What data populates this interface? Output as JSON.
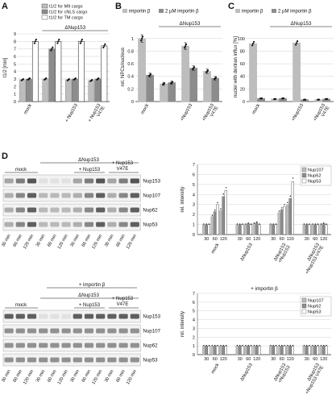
{
  "panels": {
    "A": {
      "letter": "A",
      "legend": [
        "t1/2 for M9 cargo",
        "t1/2 for cNLS cargo",
        "t1/2 for TM cargo"
      ],
      "legend_colors": [
        "#bdbdbd",
        "#8c8c8c",
        "#ffffff"
      ],
      "group_label": "ΔNup153",
      "ylabel": "t1/2 [min]",
      "yticks": [
        "0",
        "1",
        "2",
        "3",
        "4",
        "5",
        "6",
        "7",
        "8",
        "9"
      ],
      "xcats": [
        "mock",
        "",
        "+ Nup153",
        "+ Nup153 V47E"
      ]
    },
    "B": {
      "letter": "B",
      "legend": [
        "importin β",
        "2 µM importin β"
      ],
      "group_label": "ΔNup153",
      "ylabel": "rel. NPCs/nucleus",
      "yticks": [
        "0",
        "0.2",
        "0.4",
        "0.6",
        "0.8",
        "1"
      ],
      "xcats": [
        "mock",
        "",
        "+Nup153",
        "+Nup153 V47E"
      ]
    },
    "C": {
      "letter": "C",
      "legend": [
        "importin β",
        "2 µM importin β"
      ],
      "group_label": "ΔNup153",
      "ylabel": "nuclei with dextran influx [%]",
      "yticks": [
        "0",
        "20",
        "40",
        "60",
        "80",
        "100"
      ],
      "xcats": [
        "mock",
        "",
        "+Nup153",
        "+Nup153 V47E"
      ]
    },
    "D": {
      "letter": "D",
      "blot_top": {
        "header": "ΔNup153",
        "col_groups": [
          "mock",
          "+ Nup153",
          "+ Nup153 V47E"
        ],
        "rows": [
          "Nup153",
          "Nup107",
          "Nup62",
          "Nup53"
        ],
        "lanes": [
          "30 min",
          "60 min",
          "120 min",
          "30 min",
          "60 min",
          "120 min",
          "30 min",
          "60 min",
          "120 min",
          "30 min",
          "60 min",
          "120 min"
        ]
      },
      "blot_bottom": {
        "header_top": "+ importin β",
        "header": "ΔNup153",
        "col_groups": [
          "mock",
          "+ Nup153",
          "+ Nup153 V47E"
        ],
        "rows": [
          "Nup153",
          "Nup107",
          "Nup62",
          "Nup53"
        ],
        "lanes": [
          "30 min",
          "60 min",
          "120 min",
          "30 min",
          "60 min",
          "120 min",
          "30 min",
          "60 min",
          "120 min",
          "30 min",
          "60 min",
          "120 min"
        ]
      },
      "chart_top": {
        "ylabel": "rel. intensity",
        "legend": [
          "Nup107",
          "Nup62",
          "Nup53"
        ],
        "legend_colors": [
          "#bdbdbd",
          "#8c8c8c",
          "#ffffff"
        ],
        "yticks": [
          "0",
          "1",
          "2",
          "3",
          "4",
          "5",
          "6",
          "7"
        ],
        "time_ticks": [
          "30",
          "60",
          "120"
        ],
        "groups": [
          "mock",
          "ΔNup153",
          "ΔNup153 +Nup153",
          "ΔNup153 +Nup153 V47E"
        ]
      },
      "chart_bottom": {
        "title": "+ importin β",
        "ylabel": "rel. intensity",
        "legend": [
          "Nup107",
          "Nup62",
          "Nup53"
        ],
        "legend_colors": [
          "#bdbdbd",
          "#8c8c8c",
          "#ffffff"
        ],
        "yticks": [
          "0",
          "1",
          "2",
          "3",
          "4",
          "5",
          "6",
          "7"
        ],
        "time_ticks": [
          "30",
          "60",
          "120"
        ],
        "groups": [
          "mock",
          "ΔNup153",
          "ΔNup153 +Nup153",
          "ΔNup153 +Nup153 V47E"
        ]
      }
    }
  },
  "chart_data": [
    {
      "type": "bar",
      "panel": "A",
      "categories": [
        "mock",
        "ΔNup153",
        "ΔNup153 + Nup153",
        "ΔNup153 + Nup153 V47E"
      ],
      "series": [
        {
          "name": "t1/2 for M9 cargo",
          "values": [
            2.9,
            3.0,
            2.9,
            2.8
          ]
        },
        {
          "name": "t1/2 for cNLS cargo",
          "values": [
            3.0,
            7.0,
            3.0,
            3.0
          ]
        },
        {
          "name": "t1/2 for TM cargo",
          "values": [
            8.0,
            8.0,
            8.0,
            7.4
          ]
        }
      ],
      "ylabel": "t1/2 [min]",
      "ylim": [
        0,
        9
      ]
    },
    {
      "type": "bar",
      "panel": "B",
      "categories": [
        "mock",
        "ΔNup153",
        "ΔNup153 +Nup153",
        "ΔNup153 +Nup153 V47E"
      ],
      "series": [
        {
          "name": "importin β",
          "values": [
            1.0,
            0.28,
            0.88,
            0.48
          ]
        },
        {
          "name": "2 µM importin β",
          "values": [
            0.42,
            0.3,
            0.53,
            0.37
          ]
        }
      ],
      "ylabel": "rel. NPCs/nucleus",
      "ylim": [
        0,
        1.1
      ]
    },
    {
      "type": "bar",
      "panel": "C",
      "categories": [
        "mock",
        "ΔNup153",
        "ΔNup153 +Nup153",
        "ΔNup153 +Nup153 V47E"
      ],
      "series": [
        {
          "name": "importin β",
          "values": [
            92,
            4,
            93,
            3
          ]
        },
        {
          "name": "2 µM importin β",
          "values": [
            5,
            5,
            3,
            4
          ]
        }
      ],
      "ylabel": "nuclei with dextran influx [%]",
      "ylim": [
        0,
        110
      ]
    },
    {
      "type": "bar",
      "panel": "D-top",
      "categories": [
        "mock 30",
        "mock 60",
        "mock 120",
        "ΔNup153 30",
        "ΔNup153 60",
        "ΔNup153 120",
        "+Nup153 30",
        "+Nup153 60",
        "+Nup153 120",
        "+Nup153 V47E 30",
        "+Nup153 V47E 60",
        "+Nup153 V47E 120"
      ],
      "series": [
        {
          "name": "Nup107",
          "values": [
            1.0,
            1.8,
            2.4,
            1.0,
            1.0,
            1.1,
            1.0,
            2.2,
            3.0,
            1.0,
            1.0,
            1.0
          ]
        },
        {
          "name": "Nup62",
          "values": [
            1.0,
            2.3,
            3.8,
            1.0,
            1.1,
            1.2,
            1.0,
            2.5,
            3.6,
            1.0,
            1.0,
            1.1
          ]
        },
        {
          "name": "Nup53",
          "values": [
            1.0,
            3.0,
            4.4,
            1.0,
            1.0,
            1.0,
            1.0,
            2.8,
            5.3,
            1.0,
            1.0,
            1.0
          ]
        }
      ],
      "ylabel": "rel. intensity",
      "ylim": [
        0,
        7
      ]
    },
    {
      "type": "bar",
      "panel": "D-bottom",
      "title": "+ importin β",
      "categories": [
        "mock 30",
        "mock 60",
        "mock 120",
        "ΔNup153 30",
        "ΔNup153 60",
        "ΔNup153 120",
        "+Nup153 30",
        "+Nup153 60",
        "+Nup153 120",
        "+Nup153 V47E 30",
        "+Nup153 V47E 60",
        "+Nup153 V47E 120"
      ],
      "series": [
        {
          "name": "Nup107",
          "values": [
            1.0,
            1.0,
            1.0,
            1.0,
            1.0,
            1.0,
            1.0,
            1.0,
            1.0,
            1.0,
            1.0,
            1.0
          ]
        },
        {
          "name": "Nup62",
          "values": [
            1.0,
            1.0,
            1.0,
            1.0,
            1.0,
            1.0,
            1.0,
            1.0,
            1.0,
            1.0,
            1.0,
            1.0
          ]
        },
        {
          "name": "Nup53",
          "values": [
            1.0,
            1.0,
            1.0,
            1.0,
            1.0,
            1.0,
            1.0,
            1.0,
            1.0,
            1.0,
            1.0,
            1.0
          ]
        }
      ],
      "ylabel": "rel. intensity",
      "ylim": [
        0,
        7
      ]
    }
  ]
}
